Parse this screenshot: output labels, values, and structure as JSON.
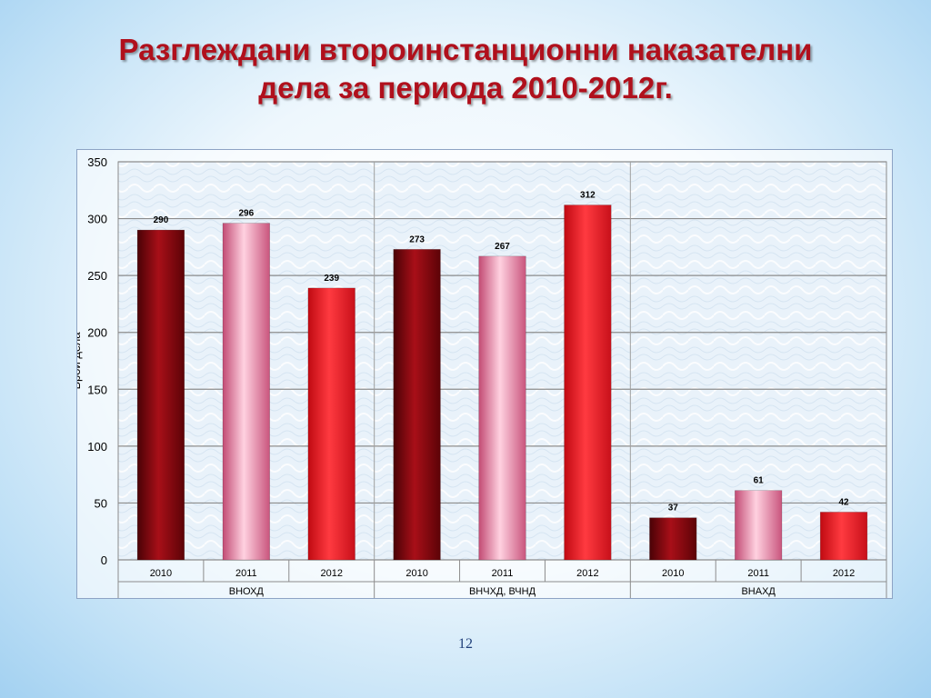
{
  "slide": {
    "title_line1": "Разглеждани второинстанционни наказателни",
    "title_line2": "дела за периода 2010-2012г.",
    "page_number": "12"
  },
  "colors": {
    "2010": "#8b0a10",
    "2011": "#f4a3be",
    "2012": "#e8141c",
    "title": "#b0101c"
  },
  "chart_data": {
    "type": "bar",
    "ylabel": "Брой дела",
    "ylim": [
      0,
      350
    ],
    "yticks": [
      0,
      50,
      100,
      150,
      200,
      250,
      300,
      350
    ],
    "grid": true,
    "groups": [
      {
        "name": "ВНОХД",
        "categories": [
          "2010",
          "2011",
          "2012"
        ],
        "values": [
          290,
          296,
          239
        ]
      },
      {
        "name": "ВНЧХД, ВЧНД",
        "categories": [
          "2010",
          "2011",
          "2012"
        ],
        "values": [
          273,
          267,
          312
        ]
      },
      {
        "name": "ВНАХД",
        "categories": [
          "2010",
          "2011",
          "2012"
        ],
        "values": [
          37,
          61,
          42
        ]
      }
    ]
  }
}
